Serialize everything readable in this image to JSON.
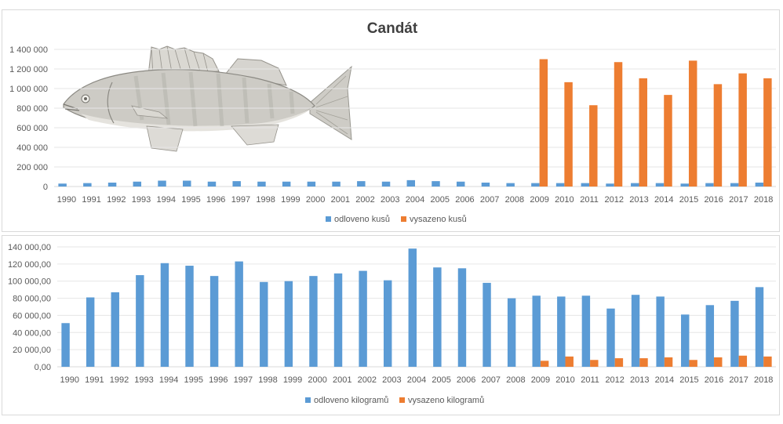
{
  "chart_data": [
    {
      "type": "bar",
      "title": "Candát",
      "categories": [
        "1990",
        "1991",
        "1992",
        "1993",
        "1994",
        "1995",
        "1996",
        "1997",
        "1998",
        "1999",
        "2000",
        "2001",
        "2002",
        "2003",
        "2004",
        "2005",
        "2006",
        "2007",
        "2008",
        "2009",
        "2010",
        "2011",
        "2012",
        "2013",
        "2014",
        "2015",
        "2016",
        "2017",
        "2018"
      ],
      "series": [
        {
          "name": "odloveno kusů",
          "color": "#5b9bd5",
          "values": [
            30000,
            35000,
            40000,
            50000,
            60000,
            60000,
            50000,
            55000,
            50000,
            50000,
            50000,
            50000,
            55000,
            50000,
            65000,
            55000,
            50000,
            40000,
            35000,
            35000,
            35000,
            35000,
            30000,
            35000,
            35000,
            30000,
            35000,
            35000,
            40000
          ]
        },
        {
          "name": "vysazeno kusů",
          "color": "#ed7d31",
          "values": [
            0,
            0,
            0,
            0,
            0,
            0,
            0,
            0,
            0,
            0,
            0,
            0,
            0,
            0,
            0,
            0,
            0,
            0,
            0,
            1300000,
            1065000,
            830000,
            1270000,
            1105000,
            935000,
            1285000,
            1045000,
            1155000,
            1105000
          ]
        }
      ],
      "ylim": [
        0,
        1400000
      ],
      "yticks": [
        "0",
        "200 000",
        "400 000",
        "600 000",
        "800 000",
        "1 000 000",
        "1 200 000",
        "1 400 000"
      ],
      "legend": "bottom",
      "grid": true
    },
    {
      "type": "bar",
      "categories": [
        "1990",
        "1991",
        "1992",
        "1993",
        "1994",
        "1995",
        "1996",
        "1997",
        "1998",
        "1999",
        "2000",
        "2001",
        "2002",
        "2003",
        "2004",
        "2005",
        "2006",
        "2007",
        "2008",
        "2009",
        "2010",
        "2011",
        "2012",
        "2013",
        "2014",
        "2015",
        "2016",
        "2017",
        "2018"
      ],
      "series": [
        {
          "name": "odloveno kilogramů",
          "color": "#5b9bd5",
          "values": [
            51000,
            81000,
            87000,
            107000,
            121000,
            118000,
            106000,
            123000,
            99000,
            100000,
            106000,
            109000,
            112000,
            101000,
            138000,
            116000,
            115000,
            98000,
            80000,
            83000,
            82000,
            83000,
            68000,
            84000,
            82000,
            61000,
            72000,
            77000,
            93000
          ]
        },
        {
          "name": "vysazeno kilogramů",
          "color": "#ed7d31",
          "values": [
            0,
            0,
            0,
            0,
            0,
            0,
            0,
            0,
            0,
            0,
            0,
            0,
            0,
            0,
            0,
            0,
            0,
            0,
            0,
            7000,
            12000,
            8000,
            10000,
            10000,
            11000,
            8000,
            11000,
            13000,
            12000
          ]
        }
      ],
      "ylim": [
        0,
        140000
      ],
      "yticks": [
        "0,00",
        "20 000,00",
        "40 000,00",
        "60 000,00",
        "80 000,00",
        "100 000,00",
        "120 000,00",
        "140 000,00"
      ],
      "legend": "bottom",
      "grid": true
    }
  ]
}
